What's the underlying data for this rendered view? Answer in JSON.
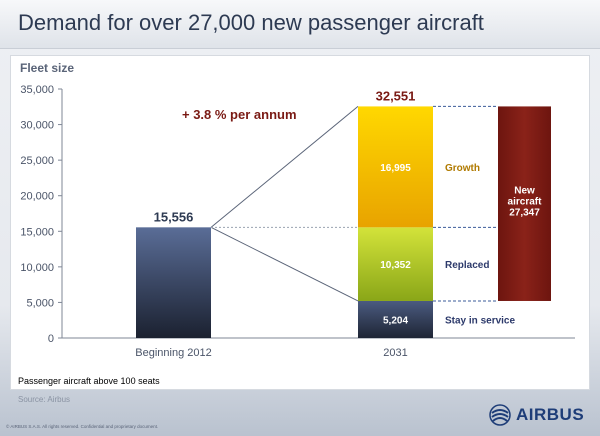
{
  "header": {
    "title": "Demand for over 27,000 new passenger aircraft"
  },
  "chart_data": {
    "type": "bar",
    "title": "Fleet size",
    "ylim": [
      0,
      35000
    ],
    "yticks": [
      "0",
      "5,000",
      "10,000",
      "15,000",
      "20,000",
      "25,000",
      "30,000",
      "35,000"
    ],
    "ytick_values": [
      0,
      5000,
      10000,
      15000,
      20000,
      25000,
      30000,
      35000
    ],
    "categories": [
      "Beginning 2012",
      "2031"
    ],
    "bars": [
      {
        "category": "Beginning 2012",
        "value": 15556,
        "label": "15,556"
      },
      {
        "category": "2031",
        "total": 32551,
        "total_label": "32,551",
        "segments": [
          {
            "name": "Stay in service",
            "value": 5204,
            "label": "5,204",
            "color": "#3b4a6b"
          },
          {
            "name": "Replaced",
            "value": 10352,
            "label": "10,352",
            "color": "#9fbe1a"
          },
          {
            "name": "Growth",
            "value": 16995,
            "label": "16,995",
            "color": "#f2b800"
          }
        ]
      }
    ],
    "new_aircraft": {
      "line1": "New",
      "line2": "aircraft",
      "value": 27347,
      "label": "27,347",
      "color": "#7a1a14"
    },
    "annotation": "+ 3.8 % per annum",
    "footnote": "Passenger aircraft above 100 seats",
    "colors": {
      "bar2012": "#4d5f86",
      "total_label": "#7a1a14",
      "growth_text": "#b07a00",
      "replaced_text": "#2d3a6b",
      "stay_text": "#2d3a6b"
    }
  },
  "footer": {
    "source": "Source: Airbus",
    "copyright": "© AIRBUS S.A.S. All rights reserved. Confidential and proprietary document.",
    "brand": "AIRBUS"
  }
}
